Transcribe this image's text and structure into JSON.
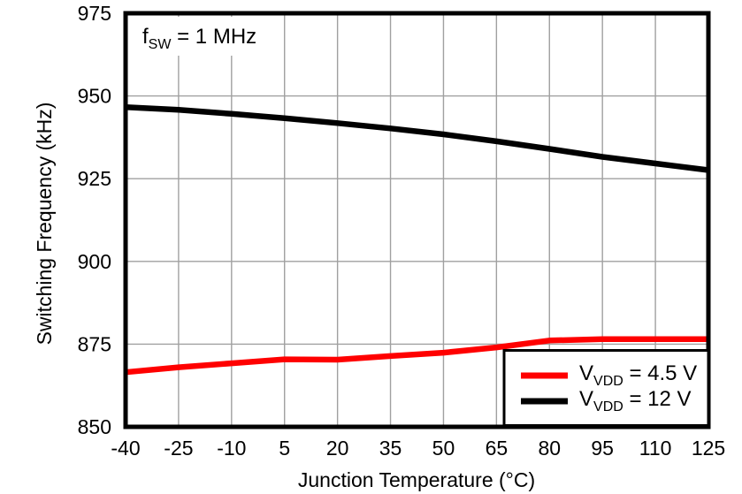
{
  "chart_data": {
    "type": "line",
    "title": "",
    "xlabel": "Junction Temperature (°C)",
    "ylabel": "Switching Frequency (kHz)",
    "annotation": {
      "pre": "f",
      "sub": "SW",
      "post": " = 1 MHz"
    },
    "xlim": [
      -40,
      125
    ],
    "ylim": [
      850,
      975
    ],
    "x_ticks": [
      -40,
      -25,
      -10,
      5,
      20,
      35,
      50,
      65,
      80,
      95,
      110,
      125
    ],
    "y_ticks": [
      850,
      875,
      900,
      925,
      950,
      975
    ],
    "grid": true,
    "grid_color": "#a0a0a0",
    "frame_color": "#000000",
    "background_color": "#ffffff",
    "legend_position": "bottom-right",
    "x": [
      -40,
      -25,
      -10,
      5,
      20,
      35,
      50,
      65,
      80,
      95,
      110,
      125
    ],
    "series": [
      {
        "label": {
          "pre": "V",
          "sub": "VDD",
          "post": " = 4.5 V"
        },
        "color": "#ff0000",
        "values": [
          866.5,
          868.0,
          869.2,
          870.4,
          870.3,
          871.4,
          872.4,
          874.0,
          876.1,
          876.5,
          876.5,
          876.5
        ]
      },
      {
        "label": {
          "pre": "V",
          "sub": "VDD",
          "post": " = 12 V"
        },
        "color": "#000000",
        "values": [
          946.6,
          945.8,
          944.6,
          943.3,
          941.8,
          940.2,
          938.4,
          936.3,
          934.0,
          931.6,
          929.6,
          927.6
        ]
      }
    ]
  }
}
